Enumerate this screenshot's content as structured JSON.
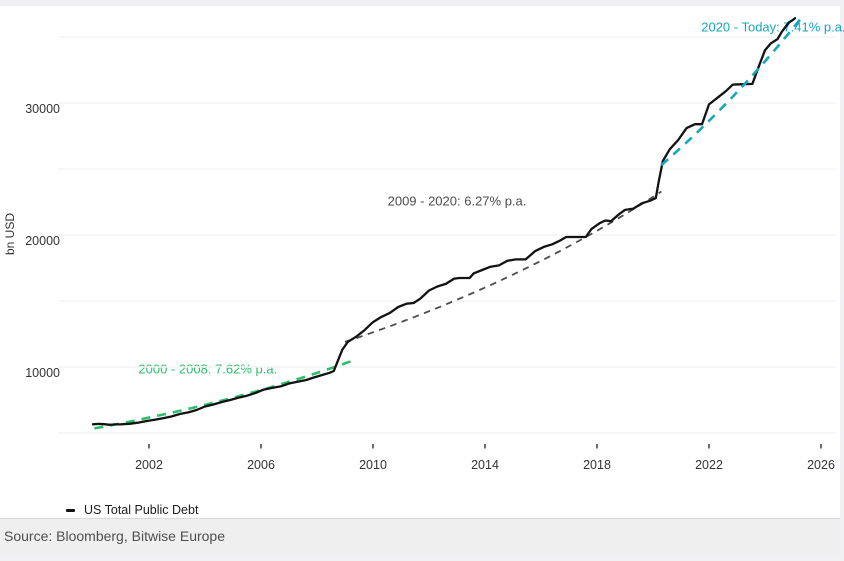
{
  "footer": {
    "source": "Source: Bloomberg, Bitwise Europe"
  },
  "legend": {
    "label": "US Total Public Debt"
  },
  "chart_data": {
    "type": "line",
    "title": "",
    "xlabel": "",
    "ylabel": "bn USD",
    "xlim": [
      1999.0,
      2026.5
    ],
    "ylim": [
      4470,
      37200
    ],
    "x_ticks": [
      2002,
      2006,
      2010,
      2014,
      2018,
      2022,
      2026
    ],
    "y_ticks": [
      10000,
      20000,
      30000
    ],
    "gridlines": [
      5000,
      10000,
      15000,
      20000,
      25000,
      30000,
      35000
    ],
    "grid_color": "#f4f3f2",
    "legend_position": "bottom-left",
    "series": [
      {
        "name": "US Total Public Debt",
        "color": "#131313",
        "points": [
          [
            2000.0,
            5660
          ],
          [
            2000.2,
            5690
          ],
          [
            2000.4,
            5665
          ],
          [
            2000.6,
            5620
          ],
          [
            2000.8,
            5650
          ],
          [
            2001.0,
            5660
          ],
          [
            2001.3,
            5700
          ],
          [
            2001.6,
            5780
          ],
          [
            2001.9,
            5900
          ],
          [
            2002.2,
            6010
          ],
          [
            2002.5,
            6120
          ],
          [
            2002.8,
            6250
          ],
          [
            2003.1,
            6440
          ],
          [
            2003.4,
            6560
          ],
          [
            2003.7,
            6740
          ],
          [
            2004.0,
            7010
          ],
          [
            2004.3,
            7160
          ],
          [
            2004.6,
            7350
          ],
          [
            2004.9,
            7500
          ],
          [
            2005.2,
            7680
          ],
          [
            2005.5,
            7830
          ],
          [
            2005.8,
            8030
          ],
          [
            2006.1,
            8290
          ],
          [
            2006.4,
            8420
          ],
          [
            2006.7,
            8530
          ],
          [
            2007.0,
            8750
          ],
          [
            2007.3,
            8890
          ],
          [
            2007.6,
            9010
          ],
          [
            2007.9,
            9210
          ],
          [
            2008.2,
            9400
          ],
          [
            2008.45,
            9560
          ],
          [
            2008.6,
            9700
          ],
          [
            2008.75,
            10500
          ],
          [
            2008.9,
            11300
          ],
          [
            2009.1,
            11900
          ],
          [
            2009.4,
            12300
          ],
          [
            2009.7,
            12800
          ],
          [
            2010.0,
            13400
          ],
          [
            2010.3,
            13800
          ],
          [
            2010.6,
            14100
          ],
          [
            2010.9,
            14550
          ],
          [
            2011.2,
            14800
          ],
          [
            2011.45,
            14850
          ],
          [
            2011.7,
            15200
          ],
          [
            2012.0,
            15800
          ],
          [
            2012.3,
            16100
          ],
          [
            2012.6,
            16300
          ],
          [
            2012.9,
            16700
          ],
          [
            2013.1,
            16740
          ],
          [
            2013.45,
            16740
          ],
          [
            2013.6,
            17100
          ],
          [
            2013.9,
            17350
          ],
          [
            2014.2,
            17600
          ],
          [
            2014.5,
            17700
          ],
          [
            2014.8,
            18050
          ],
          [
            2015.1,
            18150
          ],
          [
            2015.45,
            18150
          ],
          [
            2015.8,
            18800
          ],
          [
            2016.1,
            19100
          ],
          [
            2016.4,
            19300
          ],
          [
            2016.7,
            19600
          ],
          [
            2016.9,
            19850
          ],
          [
            2017.3,
            19850
          ],
          [
            2017.6,
            19850
          ],
          [
            2017.8,
            20450
          ],
          [
            2018.1,
            20900
          ],
          [
            2018.3,
            21100
          ],
          [
            2018.5,
            21050
          ],
          [
            2018.8,
            21600
          ],
          [
            2019.0,
            21900
          ],
          [
            2019.3,
            22000
          ],
          [
            2019.6,
            22400
          ],
          [
            2019.9,
            22600
          ],
          [
            2020.1,
            22800
          ],
          [
            2020.2,
            24000
          ],
          [
            2020.35,
            25600
          ],
          [
            2020.6,
            26500
          ],
          [
            2020.9,
            27200
          ],
          [
            2021.2,
            28100
          ],
          [
            2021.5,
            28400
          ],
          [
            2021.75,
            28400
          ],
          [
            2022.0,
            29900
          ],
          [
            2022.3,
            30400
          ],
          [
            2022.6,
            30900
          ],
          [
            2022.85,
            31400
          ],
          [
            2023.1,
            31420
          ],
          [
            2023.55,
            31450
          ],
          [
            2023.8,
            32900
          ],
          [
            2024.0,
            34000
          ],
          [
            2024.2,
            34500
          ],
          [
            2024.45,
            34850
          ],
          [
            2024.6,
            35400
          ],
          [
            2024.85,
            36100
          ],
          [
            2025.0,
            36300
          ],
          [
            2025.07,
            36430
          ]
        ]
      }
    ],
    "trendlines": [
      {
        "label": "2000 - 2008: 7.62% p.a.",
        "color": "#2dbe6c",
        "from": [
          2000.05,
          5350
        ],
        "to": [
          2009.3,
          10500
        ],
        "label_anchor": [
          2004.1,
          10300
        ],
        "over_series": false
      },
      {
        "label": "2009 - 2020: 6.27% p.a.",
        "color": "#4d4d4d",
        "from": [
          2009.0,
          11900
        ],
        "to": [
          2020.3,
          23300
        ],
        "label_anchor": [
          2013.0,
          23000
        ],
        "over_series": false
      },
      {
        "label": "2020 - Today: 7.41% p.a.",
        "color": "#16a7bf",
        "from": [
          2020.3,
          25300
        ],
        "to": [
          2025.35,
          36600
        ],
        "label_anchor": [
          2024.3,
          36200
        ],
        "over_series": true
      }
    ]
  }
}
